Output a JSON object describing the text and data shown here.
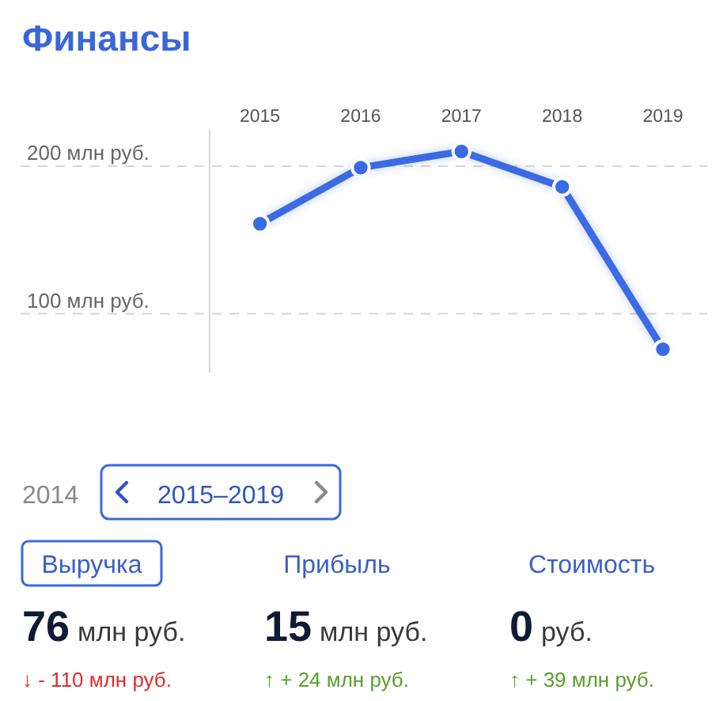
{
  "chart_data": {
    "type": "line",
    "title": "Финансы",
    "categories": [
      "2015",
      "2016",
      "2017",
      "2018",
      "2019"
    ],
    "values": [
      161,
      199,
      210,
      186,
      76
    ],
    "color": "#3a6be4",
    "ylim": [
      60,
      225
    ],
    "yticks": [
      {
        "value": 100,
        "label": "100 млн руб."
      },
      {
        "value": 200,
        "label": "200 млн руб."
      }
    ],
    "grid": "y",
    "marker": "circle",
    "line_style": "solid",
    "annotations": [
      "2014",
      "2015–2019",
      "Выручка",
      "Прибыль",
      "Стоимость",
      "76 млн руб.",
      "15 млн руб.",
      "0 руб.",
      "↓ - 110 млн руб.",
      "↑ + 24 млн руб.",
      "↑ + 39 млн руб."
    ]
  }
}
